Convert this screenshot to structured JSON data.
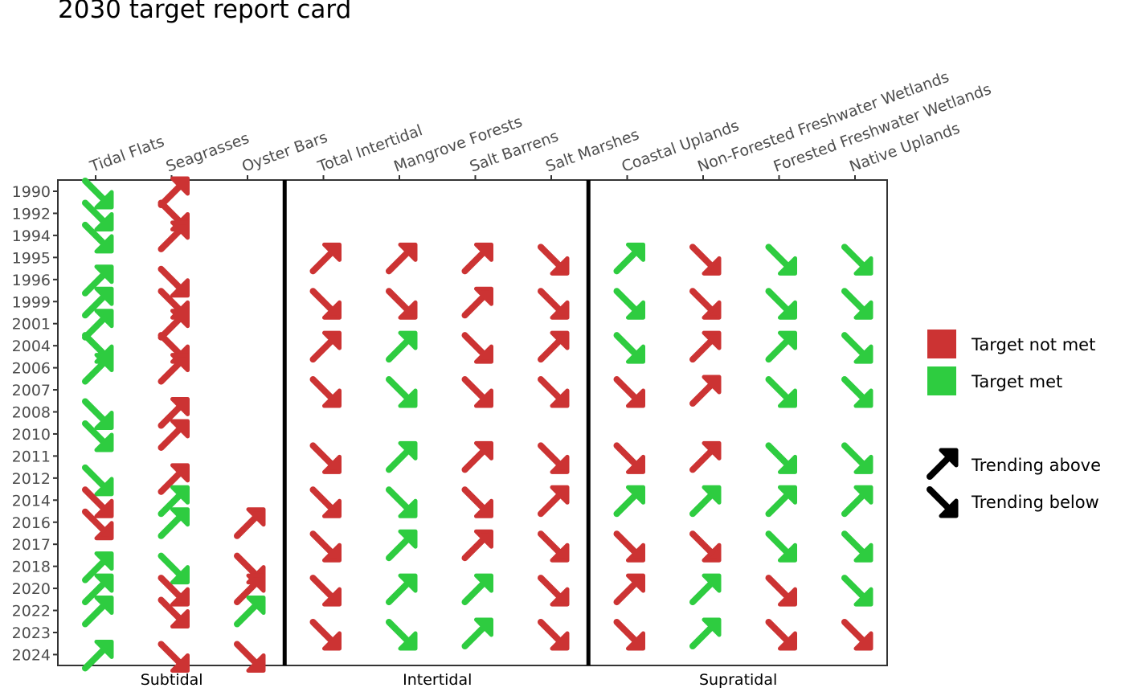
{
  "chart_data": {
    "type": "scatter",
    "title": "2030 target report card",
    "colors": {
      "not_met": "#cc3333",
      "met": "#2ecc40"
    },
    "columns": [
      "Tidal Flats",
      "Seagrasses",
      "Oyster Bars",
      "Total Intertidal",
      "Mangrove Forests",
      "Salt Barrens",
      "Salt Marshes",
      "Coastal Uplands",
      "Non-Forested Freshwater Wetlands",
      "Forested Freshwater Wetlands",
      "Native Uplands"
    ],
    "years": [
      "1990",
      "1992",
      "1994",
      "1995",
      "1996",
      "1999",
      "2001",
      "2004",
      "2006",
      "2007",
      "2008",
      "2010",
      "2011",
      "2012",
      "2014",
      "2016",
      "2017",
      "2018",
      "2020",
      "2022",
      "2023",
      "2024"
    ],
    "groups": [
      {
        "label": "Subtidal",
        "columns": [
          "Tidal Flats",
          "Seagrasses",
          "Oyster Bars"
        ]
      },
      {
        "label": "Intertidal",
        "columns": [
          "Total Intertidal",
          "Mangrove Forests",
          "Salt Barrens",
          "Salt Marshes"
        ]
      },
      {
        "label": "Supratidal",
        "columns": [
          "Coastal Uplands",
          "Non-Forested Freshwater Wetlands",
          "Forested Freshwater Wetlands",
          "Native Uplands"
        ]
      }
    ],
    "legend": {
      "position": "right",
      "status": [
        {
          "key": "not_met",
          "label": "Target not met"
        },
        {
          "key": "met",
          "label": "Target met"
        }
      ],
      "trend": [
        {
          "key": "up",
          "label": "Trending above"
        },
        {
          "key": "down",
          "label": "Trending below"
        }
      ]
    },
    "points": [
      {
        "column": "Tidal Flats",
        "year": "1990",
        "status": "met",
        "trend": "down"
      },
      {
        "column": "Tidal Flats",
        "year": "1992",
        "status": "met",
        "trend": "down"
      },
      {
        "column": "Tidal Flats",
        "year": "1994",
        "status": "met",
        "trend": "down"
      },
      {
        "column": "Tidal Flats",
        "year": "1996",
        "status": "met",
        "trend": "up"
      },
      {
        "column": "Tidal Flats",
        "year": "1999",
        "status": "met",
        "trend": "up"
      },
      {
        "column": "Tidal Flats",
        "year": "2001",
        "status": "met",
        "trend": "up"
      },
      {
        "column": "Tidal Flats",
        "year": "2004",
        "status": "met",
        "trend": "down"
      },
      {
        "column": "Tidal Flats",
        "year": "2006",
        "status": "met",
        "trend": "up"
      },
      {
        "column": "Tidal Flats",
        "year": "2008",
        "status": "met",
        "trend": "down"
      },
      {
        "column": "Tidal Flats",
        "year": "2010",
        "status": "met",
        "trend": "down"
      },
      {
        "column": "Tidal Flats",
        "year": "2012",
        "status": "met",
        "trend": "down"
      },
      {
        "column": "Tidal Flats",
        "year": "2014",
        "status": "not_met",
        "trend": "down"
      },
      {
        "column": "Tidal Flats",
        "year": "2016",
        "status": "not_met",
        "trend": "down"
      },
      {
        "column": "Tidal Flats",
        "year": "2018",
        "status": "met",
        "trend": "up"
      },
      {
        "column": "Tidal Flats",
        "year": "2020",
        "status": "met",
        "trend": "up"
      },
      {
        "column": "Tidal Flats",
        "year": "2022",
        "status": "met",
        "trend": "up"
      },
      {
        "column": "Tidal Flats",
        "year": "2024",
        "status": "met",
        "trend": "up"
      },
      {
        "column": "Seagrasses",
        "year": "1990",
        "status": "not_met",
        "trend": "up"
      },
      {
        "column": "Seagrasses",
        "year": "1992",
        "status": "not_met",
        "trend": "down"
      },
      {
        "column": "Seagrasses",
        "year": "1994",
        "status": "not_met",
        "trend": "up"
      },
      {
        "column": "Seagrasses",
        "year": "1996",
        "status": "not_met",
        "trend": "down"
      },
      {
        "column": "Seagrasses",
        "year": "1999",
        "status": "not_met",
        "trend": "down"
      },
      {
        "column": "Seagrasses",
        "year": "2001",
        "status": "not_met",
        "trend": "up"
      },
      {
        "column": "Seagrasses",
        "year": "2004",
        "status": "not_met",
        "trend": "down"
      },
      {
        "column": "Seagrasses",
        "year": "2006",
        "status": "not_met",
        "trend": "up"
      },
      {
        "column": "Seagrasses",
        "year": "2008",
        "status": "not_met",
        "trend": "up"
      },
      {
        "column": "Seagrasses",
        "year": "2010",
        "status": "not_met",
        "trend": "up"
      },
      {
        "column": "Seagrasses",
        "year": "2012",
        "status": "not_met",
        "trend": "up"
      },
      {
        "column": "Seagrasses",
        "year": "2014",
        "status": "met",
        "trend": "up"
      },
      {
        "column": "Seagrasses",
        "year": "2016",
        "status": "met",
        "trend": "up"
      },
      {
        "column": "Seagrasses",
        "year": "2018",
        "status": "met",
        "trend": "down"
      },
      {
        "column": "Seagrasses",
        "year": "2020",
        "status": "not_met",
        "trend": "down"
      },
      {
        "column": "Seagrasses",
        "year": "2022",
        "status": "not_met",
        "trend": "down"
      },
      {
        "column": "Seagrasses",
        "year": "2024",
        "status": "not_met",
        "trend": "down"
      },
      {
        "column": "Oyster Bars",
        "year": "2016",
        "status": "not_met",
        "trend": "up"
      },
      {
        "column": "Oyster Bars",
        "year": "2018",
        "status": "not_met",
        "trend": "down"
      },
      {
        "column": "Oyster Bars",
        "year": "2020",
        "status": "not_met",
        "trend": "up"
      },
      {
        "column": "Oyster Bars",
        "year": "2022",
        "status": "met",
        "trend": "up"
      },
      {
        "column": "Oyster Bars",
        "year": "2024",
        "status": "not_met",
        "trend": "down"
      },
      {
        "column": "Total Intertidal",
        "year": "1995",
        "status": "not_met",
        "trend": "up"
      },
      {
        "column": "Total Intertidal",
        "year": "1999",
        "status": "not_met",
        "trend": "down"
      },
      {
        "column": "Total Intertidal",
        "year": "2004",
        "status": "not_met",
        "trend": "up"
      },
      {
        "column": "Total Intertidal",
        "year": "2007",
        "status": "not_met",
        "trend": "down"
      },
      {
        "column": "Total Intertidal",
        "year": "2011",
        "status": "not_met",
        "trend": "down"
      },
      {
        "column": "Total Intertidal",
        "year": "2014",
        "status": "not_met",
        "trend": "down"
      },
      {
        "column": "Total Intertidal",
        "year": "2017",
        "status": "not_met",
        "trend": "down"
      },
      {
        "column": "Total Intertidal",
        "year": "2020",
        "status": "not_met",
        "trend": "down"
      },
      {
        "column": "Total Intertidal",
        "year": "2023",
        "status": "not_met",
        "trend": "down"
      },
      {
        "column": "Mangrove Forests",
        "year": "1995",
        "status": "not_met",
        "trend": "up"
      },
      {
        "column": "Mangrove Forests",
        "year": "1999",
        "status": "not_met",
        "trend": "down"
      },
      {
        "column": "Mangrove Forests",
        "year": "2004",
        "status": "met",
        "trend": "up"
      },
      {
        "column": "Mangrove Forests",
        "year": "2007",
        "status": "met",
        "trend": "down"
      },
      {
        "column": "Mangrove Forests",
        "year": "2011",
        "status": "met",
        "trend": "up"
      },
      {
        "column": "Mangrove Forests",
        "year": "2014",
        "status": "met",
        "trend": "down"
      },
      {
        "column": "Mangrove Forests",
        "year": "2017",
        "status": "met",
        "trend": "up"
      },
      {
        "column": "Mangrove Forests",
        "year": "2020",
        "status": "met",
        "trend": "up"
      },
      {
        "column": "Mangrove Forests",
        "year": "2023",
        "status": "met",
        "trend": "down"
      },
      {
        "column": "Salt Barrens",
        "year": "1995",
        "status": "not_met",
        "trend": "up"
      },
      {
        "column": "Salt Barrens",
        "year": "1999",
        "status": "not_met",
        "trend": "up"
      },
      {
        "column": "Salt Barrens",
        "year": "2004",
        "status": "not_met",
        "trend": "down"
      },
      {
        "column": "Salt Barrens",
        "year": "2007",
        "status": "not_met",
        "trend": "down"
      },
      {
        "column": "Salt Barrens",
        "year": "2011",
        "status": "not_met",
        "trend": "up"
      },
      {
        "column": "Salt Barrens",
        "year": "2014",
        "status": "not_met",
        "trend": "down"
      },
      {
        "column": "Salt Barrens",
        "year": "2017",
        "status": "not_met",
        "trend": "up"
      },
      {
        "column": "Salt Barrens",
        "year": "2020",
        "status": "met",
        "trend": "up"
      },
      {
        "column": "Salt Barrens",
        "year": "2023",
        "status": "met",
        "trend": "up"
      },
      {
        "column": "Salt Marshes",
        "year": "1995",
        "status": "not_met",
        "trend": "down"
      },
      {
        "column": "Salt Marshes",
        "year": "1999",
        "status": "not_met",
        "trend": "down"
      },
      {
        "column": "Salt Marshes",
        "year": "2004",
        "status": "not_met",
        "trend": "up"
      },
      {
        "column": "Salt Marshes",
        "year": "2007",
        "status": "not_met",
        "trend": "down"
      },
      {
        "column": "Salt Marshes",
        "year": "2011",
        "status": "not_met",
        "trend": "down"
      },
      {
        "column": "Salt Marshes",
        "year": "2014",
        "status": "not_met",
        "trend": "up"
      },
      {
        "column": "Salt Marshes",
        "year": "2017",
        "status": "not_met",
        "trend": "down"
      },
      {
        "column": "Salt Marshes",
        "year": "2020",
        "status": "not_met",
        "trend": "down"
      },
      {
        "column": "Salt Marshes",
        "year": "2023",
        "status": "not_met",
        "trend": "down"
      },
      {
        "column": "Coastal Uplands",
        "year": "1995",
        "status": "met",
        "trend": "up"
      },
      {
        "column": "Coastal Uplands",
        "year": "1999",
        "status": "met",
        "trend": "down"
      },
      {
        "column": "Coastal Uplands",
        "year": "2004",
        "status": "met",
        "trend": "down"
      },
      {
        "column": "Coastal Uplands",
        "year": "2007",
        "status": "not_met",
        "trend": "down"
      },
      {
        "column": "Coastal Uplands",
        "year": "2011",
        "status": "not_met",
        "trend": "down"
      },
      {
        "column": "Coastal Uplands",
        "year": "2014",
        "status": "met",
        "trend": "up"
      },
      {
        "column": "Coastal Uplands",
        "year": "2017",
        "status": "not_met",
        "trend": "down"
      },
      {
        "column": "Coastal Uplands",
        "year": "2020",
        "status": "not_met",
        "trend": "up"
      },
      {
        "column": "Coastal Uplands",
        "year": "2023",
        "status": "not_met",
        "trend": "down"
      },
      {
        "column": "Non-Forested Freshwater Wetlands",
        "year": "1995",
        "status": "not_met",
        "trend": "down"
      },
      {
        "column": "Non-Forested Freshwater Wetlands",
        "year": "1999",
        "status": "not_met",
        "trend": "down"
      },
      {
        "column": "Non-Forested Freshwater Wetlands",
        "year": "2004",
        "status": "not_met",
        "trend": "up"
      },
      {
        "column": "Non-Forested Freshwater Wetlands",
        "year": "2007",
        "status": "not_met",
        "trend": "up"
      },
      {
        "column": "Non-Forested Freshwater Wetlands",
        "year": "2011",
        "status": "not_met",
        "trend": "up"
      },
      {
        "column": "Non-Forested Freshwater Wetlands",
        "year": "2014",
        "status": "met",
        "trend": "up"
      },
      {
        "column": "Non-Forested Freshwater Wetlands",
        "year": "2017",
        "status": "not_met",
        "trend": "down"
      },
      {
        "column": "Non-Forested Freshwater Wetlands",
        "year": "2020",
        "status": "met",
        "trend": "up"
      },
      {
        "column": "Non-Forested Freshwater Wetlands",
        "year": "2023",
        "status": "met",
        "trend": "up"
      },
      {
        "column": "Forested Freshwater Wetlands",
        "year": "1995",
        "status": "met",
        "trend": "down"
      },
      {
        "column": "Forested Freshwater Wetlands",
        "year": "1999",
        "status": "met",
        "trend": "down"
      },
      {
        "column": "Forested Freshwater Wetlands",
        "year": "2004",
        "status": "met",
        "trend": "up"
      },
      {
        "column": "Forested Freshwater Wetlands",
        "year": "2007",
        "status": "met",
        "trend": "down"
      },
      {
        "column": "Forested Freshwater Wetlands",
        "year": "2011",
        "status": "met",
        "trend": "down"
      },
      {
        "column": "Forested Freshwater Wetlands",
        "year": "2014",
        "status": "met",
        "trend": "up"
      },
      {
        "column": "Forested Freshwater Wetlands",
        "year": "2017",
        "status": "met",
        "trend": "down"
      },
      {
        "column": "Forested Freshwater Wetlands",
        "year": "2020",
        "status": "not_met",
        "trend": "down"
      },
      {
        "column": "Forested Freshwater Wetlands",
        "year": "2023",
        "status": "not_met",
        "trend": "down"
      },
      {
        "column": "Native Uplands",
        "year": "1995",
        "status": "met",
        "trend": "down"
      },
      {
        "column": "Native Uplands",
        "year": "1999",
        "status": "met",
        "trend": "down"
      },
      {
        "column": "Native Uplands",
        "year": "2004",
        "status": "met",
        "trend": "down"
      },
      {
        "column": "Native Uplands",
        "year": "2007",
        "status": "met",
        "trend": "down"
      },
      {
        "column": "Native Uplands",
        "year": "2011",
        "status": "met",
        "trend": "down"
      },
      {
        "column": "Native Uplands",
        "year": "2014",
        "status": "met",
        "trend": "up"
      },
      {
        "column": "Native Uplands",
        "year": "2017",
        "status": "met",
        "trend": "down"
      },
      {
        "column": "Native Uplands",
        "year": "2020",
        "status": "met",
        "trend": "down"
      },
      {
        "column": "Native Uplands",
        "year": "2023",
        "status": "not_met",
        "trend": "down"
      }
    ]
  }
}
